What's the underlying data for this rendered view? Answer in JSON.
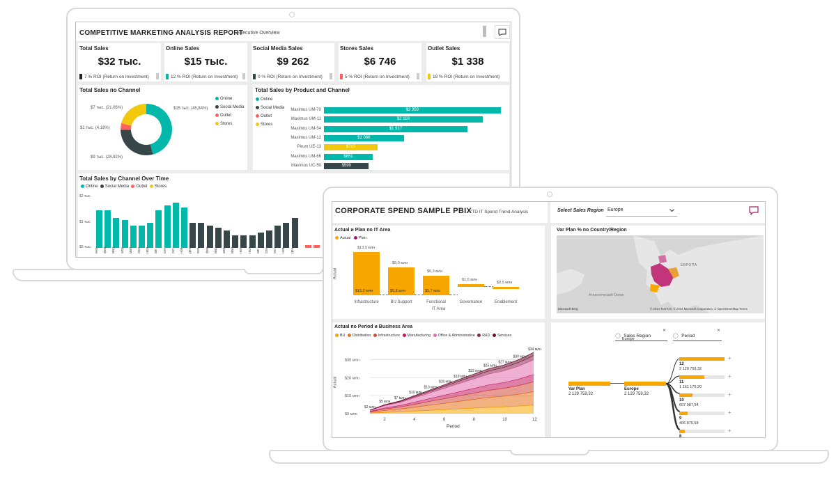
{
  "laptop1": {
    "header": {
      "title": "COMPETITIVE MARKETING ANALYSIS REPORT",
      "subtitle": "Executive Overview"
    },
    "kpis": [
      {
        "title": "Total Sales",
        "value": "$32 тыс.",
        "roi": "7 % ROI (Return on Investment)",
        "color": "#252423"
      },
      {
        "title": "Online Sales",
        "value": "$15 тыс.",
        "roi": "12 % ROI (Return on Investment)",
        "color": "#1ab394"
      },
      {
        "title": "Social Media Sales",
        "value": "$9 262",
        "roi": "0 % ROI (Return on Investment)",
        "color": "#374649"
      },
      {
        "title": "Stores Sales",
        "value": "$6 746",
        "roi": "5 % ROI (Return on Investment)",
        "color": "#fd625e"
      },
      {
        "title": "Outlet Sales",
        "value": "$1 338",
        "roi": "18 % ROI (Return on Investment)",
        "color": "#f2c80f"
      }
    ],
    "donut": {
      "title": "Total Sales по Channel",
      "legend": [
        {
          "name": "Online",
          "color": "#01b8aa"
        },
        {
          "name": "Social Media",
          "color": "#374649"
        },
        {
          "name": "Outlet",
          "color": "#fd625e"
        },
        {
          "name": "Stores",
          "color": "#f2c80f"
        }
      ],
      "labels": {
        "online": "$15 тыс. (45,84%)",
        "stores": "$7 тыс. (21,06%)",
        "outlet": "$1 тыс. (4,18%)",
        "social": "$9 тыс. (28,92%)"
      }
    },
    "products": {
      "title": "Total Sales by Product and Channel",
      "legend": [
        {
          "name": "Online",
          "color": "#01b8aa"
        },
        {
          "name": "Social Media",
          "color": "#374649"
        },
        {
          "name": "Outlet",
          "color": "#fd625e"
        },
        {
          "name": "Stores",
          "color": "#f2c80f"
        }
      ]
    },
    "timeline": {
      "title": "Total Sales by Channel Over Time",
      "legend": [
        {
          "name": "Online",
          "color": "#01b8aa"
        },
        {
          "name": "Social Media",
          "color": "#374649"
        },
        {
          "name": "Outlet",
          "color": "#fd625e"
        },
        {
          "name": "Stores",
          "color": "#f2c80f"
        }
      ],
      "yticks": [
        "$2 тыс.",
        "$1 тыс.",
        "$0 тыс."
      ]
    }
  },
  "laptop2": {
    "header": {
      "title": "CORPORATE SPEND SAMPLE PBIX",
      "subtitle": "YTD IT Spend Trend Analysis"
    },
    "filter": {
      "label": "Select Sales Region",
      "value": "Europe"
    },
    "waterfall": {
      "title": "Actual и Plan по IT Area",
      "legend": [
        {
          "name": "Actual",
          "color": "#f7a700"
        },
        {
          "name": "Plan",
          "color": "#a4206e"
        }
      ],
      "ylabel": "Actual",
      "xlabel": "IT Area"
    },
    "map": {
      "title": "Var Plan % по Country/Region",
      "ocean": "Атлантический Океан",
      "region": "ЕВРОПА",
      "credit": "© 2024 TomTom, © 2024 Microsoft Corporation, © OpenStreetMap Terms",
      "brand": "Microsoft Bing"
    },
    "area": {
      "title": "Actual по Period и Business Area",
      "legend": [
        {
          "name": "BU",
          "color": "#f7a700"
        },
        {
          "name": "Distribution",
          "color": "#e8711a"
        },
        {
          "name": "Infrastructure",
          "color": "#d14a3b"
        },
        {
          "name": "Manufacturing",
          "color": "#c2185b"
        },
        {
          "name": "Office & Administrative",
          "color": "#e36fb0"
        },
        {
          "name": "R&D",
          "color": "#8e2451"
        },
        {
          "name": "Services",
          "color": "#6b1030"
        }
      ],
      "ylabel": "Actual",
      "xlabel": "Period"
    },
    "decomp": {
      "filter1": "Sales Region",
      "filter1_value": "Europe",
      "filter2": "Period",
      "root_label": "Var Plan",
      "root_value": "2 129 759,32",
      "mid_label": "Europe",
      "mid_value": "2 129 759,32",
      "items": [
        {
          "label": "12",
          "value": "2 129 759,32",
          "fill": 1.0
        },
        {
          "label": "11",
          "value": "1 161 179,20",
          "fill": 0.55
        },
        {
          "label": "10",
          "value": "607 987,94",
          "fill": 0.29
        },
        {
          "label": "9",
          "value": "406 875,68",
          "fill": 0.19
        },
        {
          "label": "8",
          "value": "284 154,11",
          "fill": 0.13
        }
      ]
    }
  },
  "chart_data": [
    {
      "type": "bar",
      "title": "Total Sales by Product and Channel",
      "orientation": "horizontal",
      "categories": [
        "Maximus UM-70",
        "Maximus UM-11",
        "Maximus UM-54",
        "Maximus UM-12",
        "Pirum UE-13",
        "Maximus UM-66",
        "Maximus UC-50"
      ],
      "values": [
        2359,
        2118,
        1917,
        1066,
        715,
        651,
        599
      ],
      "labels": [
        "$2 359",
        "$2 118",
        "$1 917",
        "$1 066",
        "$715",
        "$651",
        "$599"
      ],
      "channels": [
        "Online",
        "Online",
        "Online",
        "Online",
        "Stores",
        "Online",
        "Social Media"
      ],
      "xlim": [
        0,
        2400
      ]
    },
    {
      "type": "pie",
      "title": "Total Sales по Channel",
      "categories": [
        "Online",
        "Social Media",
        "Outlet",
        "Stores"
      ],
      "values": [
        45.84,
        28.92,
        4.18,
        21.06
      ]
    },
    {
      "type": "bar",
      "title": "Total Sales by Channel Over Time",
      "ylabel": "",
      "ylim": [
        0,
        2000
      ],
      "x": [
        "янв",
        "фев",
        "мар",
        "апр",
        "май",
        "июн",
        "июл",
        "авг",
        "сен",
        "окт",
        "ноя",
        "дек",
        "янв",
        "фев",
        "мар",
        "апр",
        "май",
        "июн",
        "июл",
        "авг",
        "сен",
        "окт",
        "ноя",
        "дек"
      ],
      "values": [
        1500,
        1500,
        1200,
        1100,
        900,
        900,
        1000,
        1500,
        1700,
        1800,
        1600,
        1000,
        1000,
        900,
        800,
        700,
        500,
        500,
        500,
        600,
        700,
        900,
        1000,
        1200
      ],
      "channels": [
        "Online",
        "Online",
        "Online",
        "Online",
        "Online",
        "Online",
        "Online",
        "Online",
        "Online",
        "Online",
        "Online",
        "Social Media",
        "Social Media",
        "Social Media",
        "Social Media",
        "Social Media",
        "Social Media",
        "Social Media",
        "Social Media",
        "Social Media",
        "Social Media",
        "Social Media",
        "Social Media",
        "Social Media"
      ]
    },
    {
      "type": "bar",
      "title": "Actual и Plan по IT Area",
      "subtype": "waterfall",
      "categories": [
        "Infrastructure",
        "BU Support",
        "Functional",
        "Governance",
        "Enablement"
      ],
      "actual": [
        15.2,
        9.8,
        5.7,
        1.6,
        0.5
      ],
      "plan": [
        13.9,
        9.0,
        6.3,
        1.6,
        0.5
      ],
      "actual_labels": [
        "$15,2 млн",
        "$9,8 млн",
        "$5,7 млн",
        "",
        ""
      ],
      "plan_labels": [
        "$13,9 млн",
        "$9,0 млн",
        "$6,3 млн",
        "$1,6 млн",
        "$0,5 млн"
      ],
      "ylabel": "Actual",
      "xlabel": "IT Area"
    },
    {
      "type": "area",
      "title": "Actual по Period и Business Area",
      "x": [
        1,
        2,
        3,
        4,
        5,
        6,
        7,
        8,
        9,
        10,
        11,
        12
      ],
      "xticks": [
        2,
        4,
        6,
        8,
        10,
        12
      ],
      "yticks": [
        "$30 млн",
        "$20 млн",
        "$10 млн",
        "$0 млн"
      ],
      "ylim": [
        0,
        36
      ],
      "totals": [
        2,
        5,
        7,
        10,
        13,
        16,
        19,
        22,
        25,
        27,
        30,
        34
      ],
      "total_labels": [
        "$2 млн",
        "$5 млн",
        "$7 млн",
        "$10 млн",
        "$13 млн",
        "$16 млн",
        "$19 млн",
        "$22 млн",
        "$25 млн",
        "$27 млн",
        "$30 млн",
        "$34 млн"
      ],
      "series_share": [
        0.14,
        0.22,
        0.16,
        0.12,
        0.24,
        0.07,
        0.05
      ],
      "ylabel": "Actual",
      "xlabel": "Period"
    }
  ]
}
